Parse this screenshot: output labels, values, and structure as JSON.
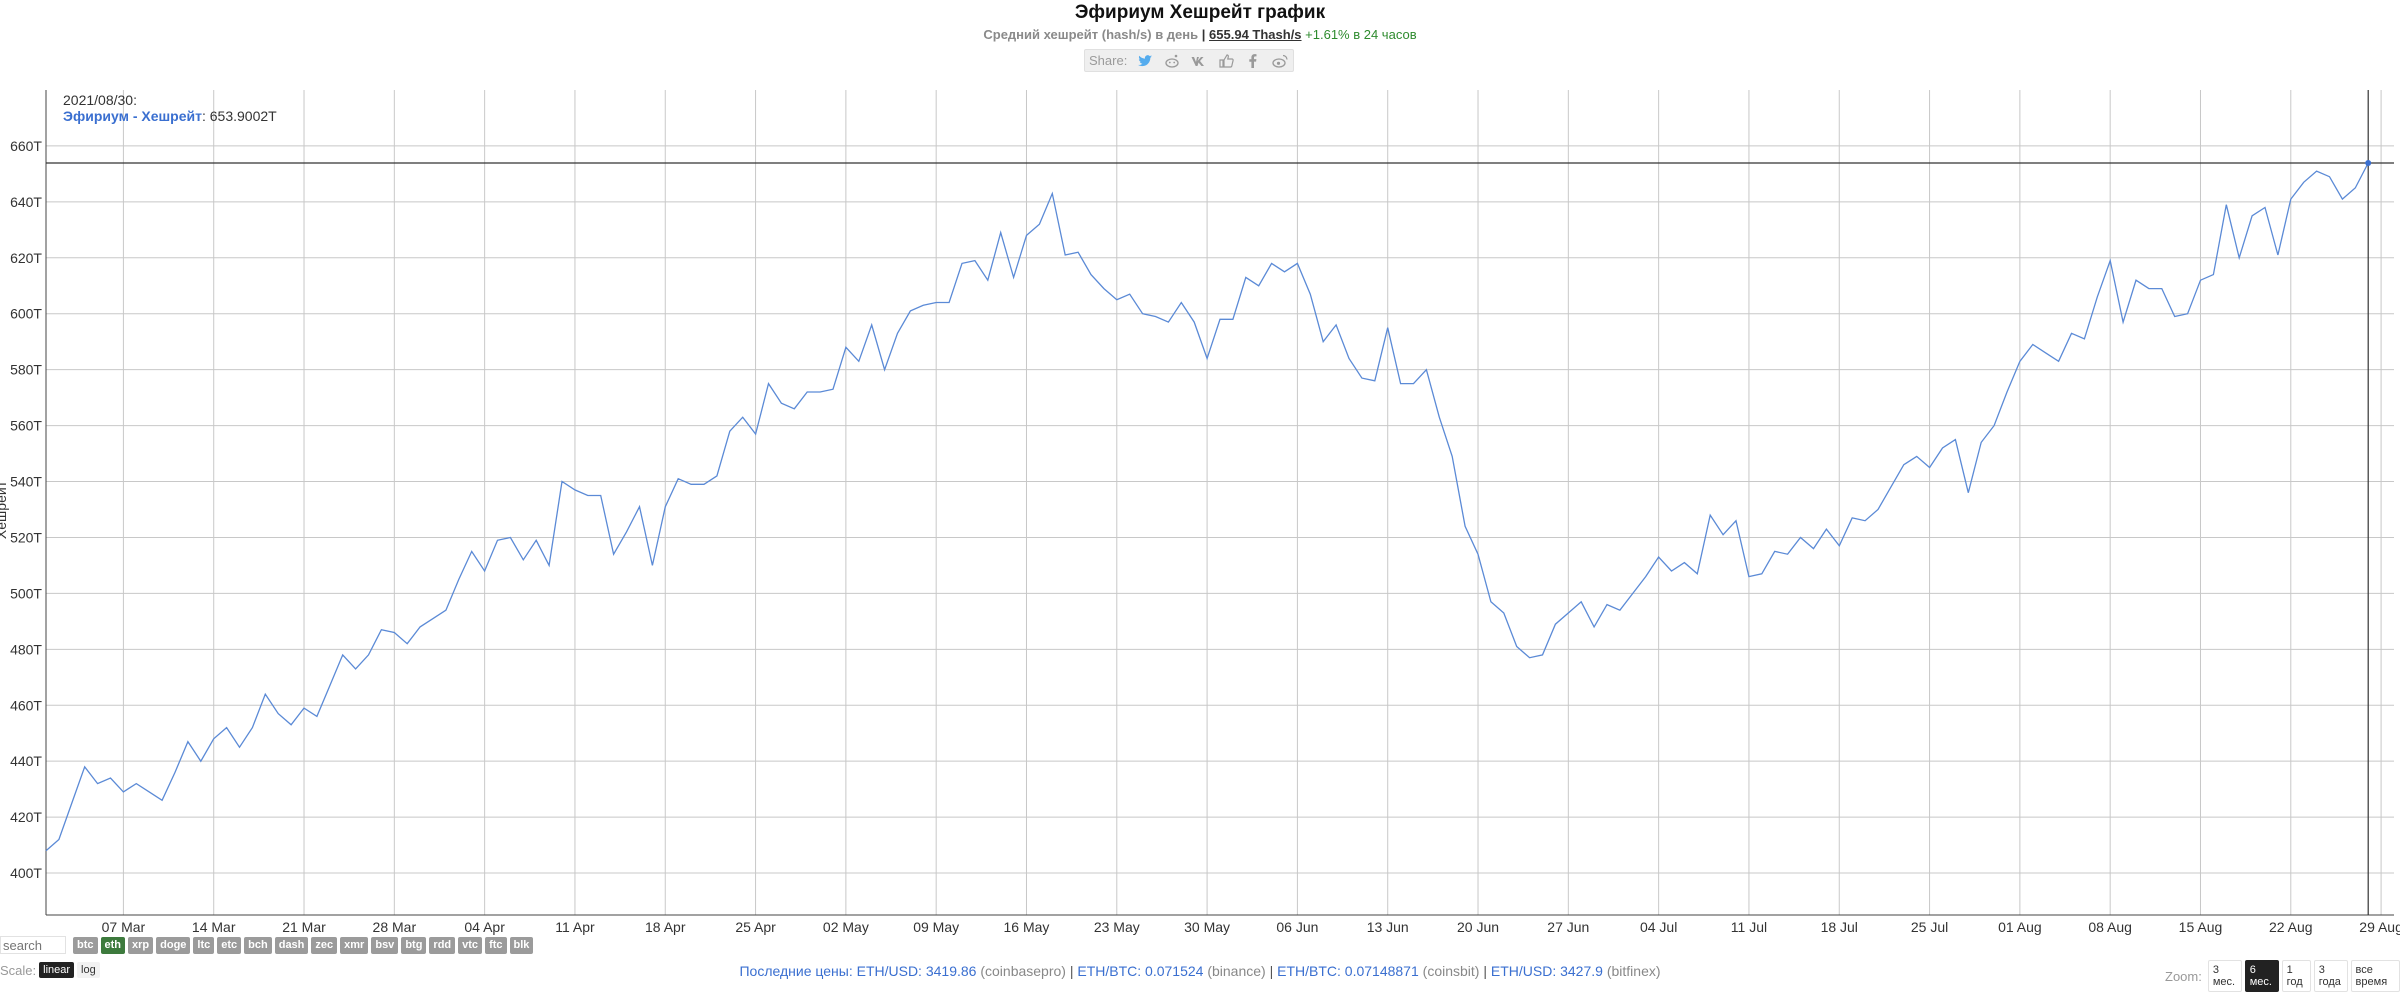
{
  "header": {
    "title": "Эфириум Хешрейт график",
    "subtitle_prefix": "Средний хешрейт (hash/s) в день",
    "subtitle_sep": "|",
    "current_value": "655.94 Thash/s",
    "change": "+1.61% в 24 часов"
  },
  "share": {
    "label": "Share:",
    "icons": [
      "twitter-icon",
      "reddit-icon",
      "vk-icon",
      "like-icon",
      "facebook-icon",
      "weibo-icon"
    ]
  },
  "chart_data": {
    "type": "line",
    "ylabel": "Хешрейт",
    "ylim": [
      385,
      680
    ],
    "y_ticks": [
      400,
      420,
      440,
      460,
      480,
      500,
      520,
      540,
      560,
      580,
      600,
      620,
      640,
      660
    ],
    "y_tick_labels": [
      "400T",
      "420T",
      "440T",
      "460T",
      "480T",
      "500T",
      "520T",
      "540T",
      "560T",
      "580T",
      "600T",
      "620T",
      "640T",
      "660T"
    ],
    "x_start": "2021-03-01",
    "x_end": "2021-08-30",
    "x_ticks": [
      "2021-03-07",
      "2021-03-14",
      "2021-03-21",
      "2021-03-28",
      "2021-04-04",
      "2021-04-11",
      "2021-04-18",
      "2021-04-25",
      "2021-05-02",
      "2021-05-09",
      "2021-05-16",
      "2021-05-23",
      "2021-05-30",
      "2021-06-06",
      "2021-06-13",
      "2021-06-20",
      "2021-06-27",
      "2021-07-04",
      "2021-07-11",
      "2021-07-18",
      "2021-07-25",
      "2021-08-01",
      "2021-08-08",
      "2021-08-15",
      "2021-08-22",
      "2021-08-29"
    ],
    "x_tick_labels": [
      "07 Mar",
      "14 Mar",
      "21 Mar",
      "28 Mar",
      "04 Apr",
      "11 Apr",
      "18 Apr",
      "25 Apr",
      "02 May",
      "09 May",
      "16 May",
      "23 May",
      "30 May",
      "06 Jun",
      "13 Jun",
      "20 Jun",
      "27 Jun",
      "04 Jul",
      "11 Jul",
      "18 Jul",
      "25 Jul",
      "01 Aug",
      "08 Aug",
      "15 Aug",
      "22 Aug",
      "29 Aug"
    ],
    "grid": true,
    "series": [
      {
        "name": "Эфириум - Хешрейт",
        "color": "#5b8ad6",
        "values": [
          408,
          412,
          425,
          438,
          432,
          434,
          429,
          432,
          429,
          426,
          436,
          447,
          440,
          448,
          452,
          445,
          452,
          464,
          457,
          453,
          459,
          456,
          467,
          478,
          473,
          478,
          487,
          486,
          482,
          488,
          491,
          494,
          505,
          515,
          508,
          519,
          520,
          512,
          519,
          510,
          540,
          537,
          535,
          535,
          514,
          522,
          531,
          510,
          531,
          541,
          539,
          539,
          542,
          558,
          563,
          557,
          575,
          568,
          566,
          572,
          572,
          573,
          588,
          583,
          596,
          580,
          593,
          601,
          603,
          604,
          604,
          618,
          619,
          612,
          629,
          613,
          628,
          632,
          643,
          621,
          622,
          614,
          609,
          605,
          607,
          600,
          599,
          597,
          604,
          597,
          584,
          598,
          598,
          613,
          610,
          618,
          615,
          618,
          607,
          590,
          596,
          584,
          577,
          576,
          595,
          575,
          575,
          580,
          563,
          549,
          524,
          514,
          497,
          493,
          481,
          477,
          478,
          489,
          493,
          497,
          488,
          496,
          494,
          500,
          506,
          513,
          508,
          511,
          507,
          528,
          521,
          526,
          506,
          507,
          515,
          514,
          520,
          516,
          523,
          517,
          527,
          526,
          530,
          538,
          546,
          549,
          545,
          552,
          555,
          536,
          554,
          560,
          572,
          583,
          589,
          586,
          583,
          593,
          591,
          606,
          619,
          597,
          612,
          609,
          609,
          599,
          600,
          612,
          614,
          639,
          620,
          635,
          638,
          621,
          641,
          647,
          651,
          649,
          641,
          645,
          653.9002
        ]
      }
    ],
    "tooltip": {
      "date": "2021/08/30:",
      "series_label": "Эфириум - Хешрейт",
      "value": "653.9002T"
    }
  },
  "coins": {
    "search_placeholder": "search",
    "items": [
      "btc",
      "eth",
      "xrp",
      "doge",
      "ltc",
      "etc",
      "bch",
      "dash",
      "zec",
      "xmr",
      "bsv",
      "btg",
      "rdd",
      "vtc",
      "ftc",
      "blk"
    ],
    "active": "eth"
  },
  "scale": {
    "label": "Scale:",
    "options": [
      "linear",
      "log"
    ],
    "active": "linear"
  },
  "prices": {
    "label": "Последние цены:",
    "items": [
      {
        "pair": "ETH/USD: 3419.86",
        "source": "(coinbasepro)"
      },
      {
        "pair": "ETH/BTC: 0.071524",
        "source": "(binance)"
      },
      {
        "pair": "ETH/BTC: 0.07148871",
        "source": "(coinsbit)"
      },
      {
        "pair": "ETH/USD: 3427.9",
        "source": "(bitfinex)"
      }
    ]
  },
  "zoom": {
    "label": "Zoom:",
    "options": [
      "3 мес.",
      "6 мес.",
      "1 год",
      "3 года",
      "все время"
    ],
    "active": "6 мес."
  }
}
